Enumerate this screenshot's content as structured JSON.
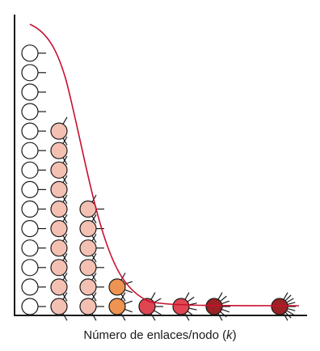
{
  "axis_label": {
    "prefix": "Número de enlaces/nodo (",
    "variable": "k",
    "suffix": ")"
  },
  "colors": {
    "axis": "#1a1a1a",
    "curve": "#c8102e",
    "stroke": "#1a1a1a",
    "k1": "#ffffff",
    "k2": "#f4c0b2",
    "k3": "#f4c0b2",
    "k4": "#ee9352",
    "k5": "#e04552",
    "k6": "#e04552",
    "k7": "#9b2124",
    "k9": "#9b2124"
  },
  "node_columns": [
    {
      "links": 1,
      "count": 14
    },
    {
      "links": 2,
      "count": 10
    },
    {
      "links": 3,
      "count": 6
    },
    {
      "links": 4,
      "count": 2
    },
    {
      "links": 5,
      "count": 1
    },
    {
      "links": 6,
      "count": 1
    },
    {
      "links": 7,
      "count": 1
    },
    {
      "links": 9,
      "count": 1
    }
  ],
  "curve": {
    "type": "sigmoid-decay",
    "color": "curve"
  }
}
